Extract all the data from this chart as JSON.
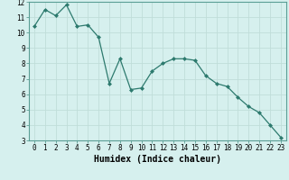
{
  "x": [
    0,
    1,
    2,
    3,
    4,
    5,
    6,
    7,
    8,
    9,
    10,
    11,
    12,
    13,
    14,
    15,
    16,
    17,
    18,
    19,
    20,
    21,
    22,
    23
  ],
  "y": [
    10.4,
    11.5,
    11.1,
    11.8,
    10.4,
    10.5,
    9.7,
    6.7,
    8.3,
    6.3,
    6.4,
    7.5,
    8.0,
    8.3,
    8.3,
    8.2,
    7.2,
    6.7,
    6.5,
    5.8,
    5.2,
    4.8,
    4.0,
    3.2
  ],
  "xlabel": "Humidex (Indice chaleur)",
  "xlim": [
    -0.5,
    23.5
  ],
  "ylim": [
    3,
    12
  ],
  "yticks": [
    3,
    4,
    5,
    6,
    7,
    8,
    9,
    10,
    11,
    12
  ],
  "xticks": [
    0,
    1,
    2,
    3,
    4,
    5,
    6,
    7,
    8,
    9,
    10,
    11,
    12,
    13,
    14,
    15,
    16,
    17,
    18,
    19,
    20,
    21,
    22,
    23
  ],
  "line_color": "#2d7a6e",
  "marker": "D",
  "marker_size": 2.0,
  "bg_color": "#d6f0ee",
  "grid_color": "#c0ddd9",
  "tick_label_fontsize": 5.5,
  "xlabel_fontsize": 7.0
}
